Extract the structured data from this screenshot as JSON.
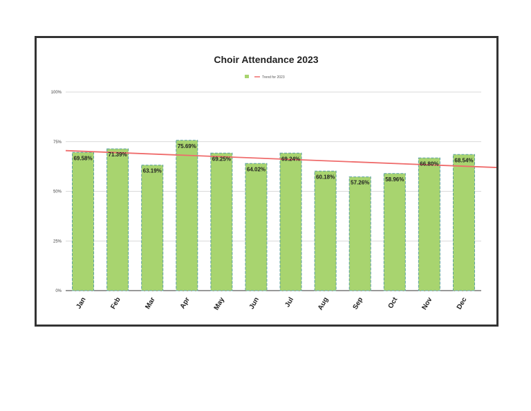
{
  "chart_data": {
    "type": "bar",
    "title": "Choir Attendance 2023",
    "categories": [
      "Jan",
      "Feb",
      "Mar",
      "Apr",
      "May",
      "Jun",
      "Jul",
      "Aug",
      "Sep",
      "Oct",
      "Nov",
      "Dec"
    ],
    "series": [
      {
        "values": [
          69.58,
          71.39,
          63.19,
          75.69,
          69.25,
          64.02,
          69.24,
          60.18,
          57.26,
          58.96,
          66.8,
          68.54
        ]
      }
    ],
    "data_labels": [
      "69.58%",
      "71.39%",
      "63.19%",
      "75.69%",
      "69.25%",
      "64.02%",
      "69.24%",
      "60.18%",
      "57.26%",
      "58.96%",
      "66.80%",
      "68.54%"
    ],
    "trendline": {
      "name": "Trend for 2023",
      "start_value": 70.5,
      "end_value": 62.0
    },
    "yticks": [
      0,
      25,
      50,
      75,
      100
    ],
    "ytick_labels": [
      "0%",
      "25%",
      "50%",
      "75%",
      "100%"
    ],
    "ylim": [
      0,
      100
    ],
    "grid": true,
    "legend_position": "top",
    "colors": {
      "bar": "#a8d46f",
      "bar_border": "#5aa0a0",
      "trend": "#ef6b6b",
      "grid": "#cccccc",
      "frame": "#333333"
    }
  }
}
